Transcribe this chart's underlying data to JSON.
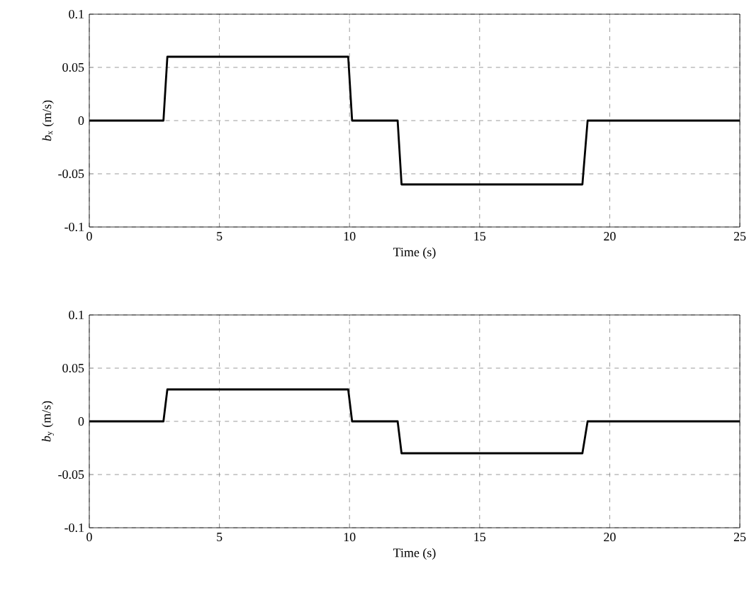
{
  "chart_data": [
    {
      "type": "line",
      "xlabel": "Time (s)",
      "ylabel": "*b*$_{x}$ (m/s)",
      "x": [
        0,
        2.85,
        3.0,
        9.95,
        10.1,
        11.85,
        12.0,
        18.95,
        19.15,
        25
      ],
      "series": [
        {
          "color": "#000000",
          "values": [
            0,
            0,
            0.06,
            0.06,
            0,
            0,
            -0.06,
            -0.06,
            0,
            0
          ]
        }
      ],
      "xlim": [
        0,
        25
      ],
      "ylim": [
        -0.1,
        0.1
      ],
      "xticks": [
        0,
        5,
        10,
        15,
        20,
        25
      ],
      "yticks": [
        -0.1,
        -0.05,
        0,
        0.05,
        0.1
      ],
      "grid": true,
      "line_style": "solid",
      "marker": "none"
    },
    {
      "type": "line",
      "xlabel": "Time (s)",
      "ylabel": "*b*$_{y}$ (m/s)",
      "x": [
        0,
        2.85,
        3.0,
        9.95,
        10.1,
        11.85,
        12.0,
        18.95,
        19.15,
        25
      ],
      "series": [
        {
          "color": "#000000",
          "values": [
            0,
            0,
            0.03,
            0.03,
            0,
            0,
            -0.03,
            -0.03,
            0,
            0
          ]
        }
      ],
      "xlim": [
        0,
        25
      ],
      "ylim": [
        -0.1,
        0.1
      ],
      "xticks": [
        0,
        5,
        10,
        15,
        20,
        25
      ],
      "yticks": [
        -0.1,
        -0.05,
        0,
        0.05,
        0.1
      ],
      "grid": true,
      "line_style": "solid",
      "marker": "none"
    }
  ]
}
